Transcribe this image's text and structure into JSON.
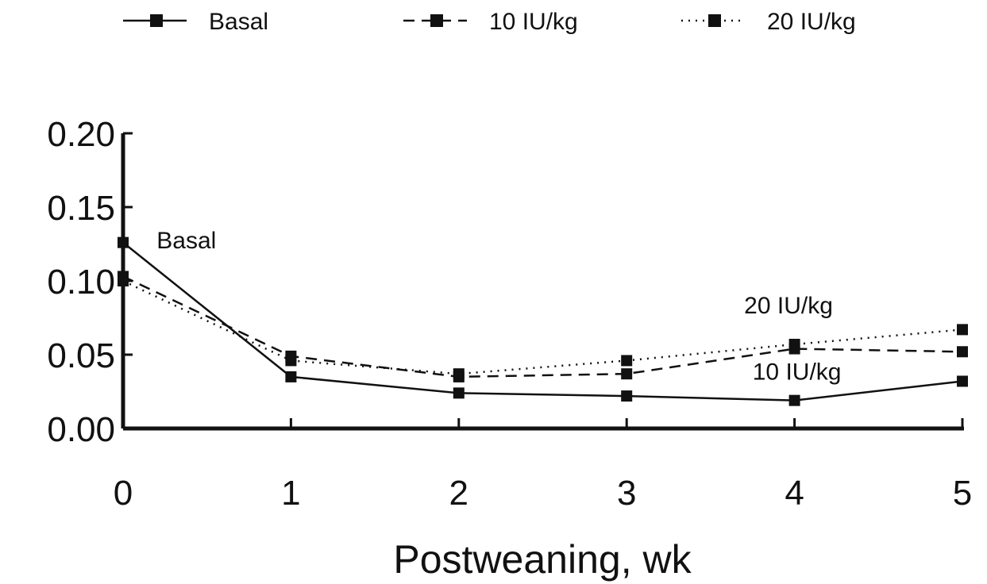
{
  "chart_data": {
    "type": "line",
    "title": "",
    "xlabel": "Postweaning, wk",
    "ylabel": "",
    "x": [
      0,
      1,
      2,
      3,
      4,
      5
    ],
    "xlim": [
      0,
      5
    ],
    "ylim": [
      0,
      0.2
    ],
    "x_ticks": [
      "0",
      "1",
      "2",
      "3",
      "4",
      "5"
    ],
    "y_ticks": [
      "0.00",
      "0.05",
      "0.10",
      "0.15",
      "0.20"
    ],
    "y_tick_values": [
      0.0,
      0.05,
      0.1,
      0.15,
      0.2
    ],
    "grid": false,
    "legend_position": "top",
    "series": [
      {
        "name": "Basal",
        "line_style": "solid",
        "values": [
          0.126,
          0.035,
          0.024,
          0.022,
          0.019,
          0.032
        ]
      },
      {
        "name": "10 IU/kg",
        "line_style": "dashed",
        "values": [
          0.103,
          0.049,
          0.035,
          0.037,
          0.054,
          0.052
        ]
      },
      {
        "name": "20 IU/kg",
        "line_style": "dotted",
        "values": [
          0.1,
          0.046,
          0.037,
          0.046,
          0.057,
          0.067
        ]
      }
    ],
    "annotations": [
      {
        "text": "Basal",
        "x": 0.2,
        "y": 0.122
      },
      {
        "text": "20 IU/kg",
        "x": 3.7,
        "y": 0.078
      },
      {
        "text": "10 IU/kg",
        "x": 3.75,
        "y": 0.033
      }
    ],
    "colors": {
      "line": "#111111",
      "marker": "#111111"
    }
  }
}
